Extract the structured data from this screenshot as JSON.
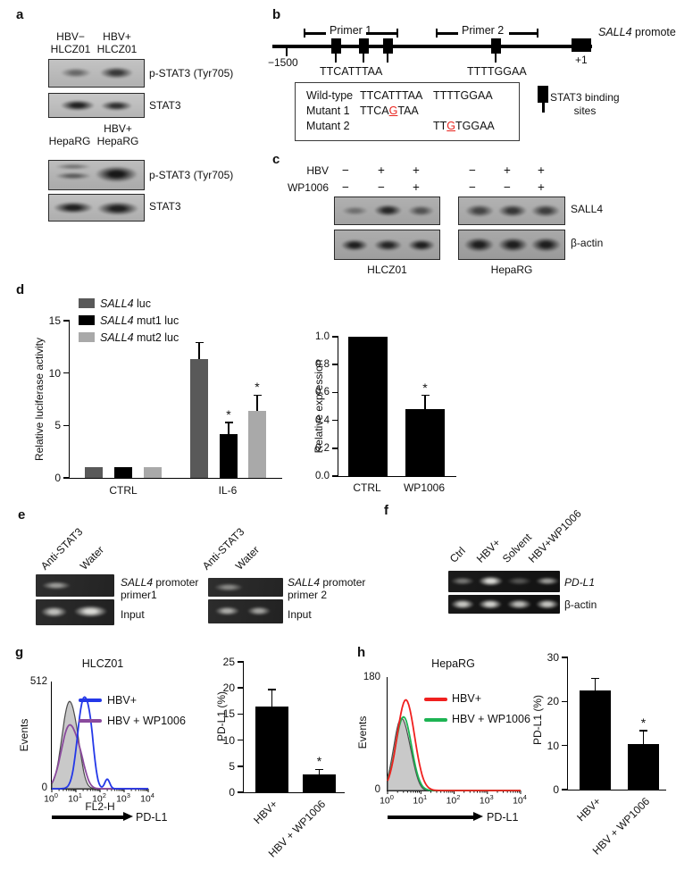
{
  "panel_a": {
    "label": "a",
    "group1": {
      "col1": [
        "HBV−",
        "HLCZ01"
      ],
      "col2": [
        "HBV+",
        "HLCZ01"
      ],
      "blot1_label": "p-STAT3 (Tyr705)",
      "blot2_label": "STAT3"
    },
    "group2": {
      "col1": [
        "HepaRG"
      ],
      "col2": [
        "HBV+",
        "HepaRG"
      ],
      "blot1_label": "p-STAT3 (Tyr705)",
      "blot2_label": "STAT3"
    }
  },
  "panel_b": {
    "label": "b",
    "primer1_label": "Primer 1",
    "primer2_label": "Primer 2",
    "promoter_gene": "SALL4",
    "promoter_word": " promoter",
    "pos_left": "−1500",
    "pos_right": "+1",
    "site1_seq": "TTCATTTAA",
    "site2_seq": "TTTTGGAA",
    "mutation_table": {
      "rows": [
        {
          "name": "Wild-type",
          "s1a": "TTCATTTAA",
          "s1red": "",
          "s1b": "",
          "s2a": "TTTTGGAA",
          "s2red": "",
          "s2b": ""
        },
        {
          "name": "Mutant 1",
          "s1a": "TTCA",
          "s1red": "G",
          "s1b": "TAA",
          "s2a": "",
          "s2red": "",
          "s2b": ""
        },
        {
          "name": "Mutant 2",
          "s1a": "",
          "s1red": "",
          "s1b": "",
          "s2a": "TT",
          "s2red": "G",
          "s2b": "TGGAA"
        }
      ]
    },
    "legend": [
      "STAT3 binding",
      "sites"
    ]
  },
  "panel_c": {
    "label": "c",
    "row1_label": "HBV",
    "row2_label": "WP1006",
    "hbv_signs": [
      "−",
      "+",
      "+",
      "−",
      "+",
      "+"
    ],
    "wp_signs": [
      "−",
      "−",
      "+",
      "−",
      "−",
      "+"
    ],
    "blot1_label": "SALL4",
    "blot2_label": "β-actin",
    "cell_line_left": "HLCZ01",
    "cell_line_right": "HepaRG"
  },
  "panel_d": {
    "label": "d"
  },
  "panel_e": {
    "label": "e",
    "group1": {
      "lane1": "Anti-STAT3",
      "lane2": "Water",
      "target_gene": "SALL4",
      "target_word": " promoter",
      "target_line2": "primer1",
      "input_label": "Input"
    },
    "group2": {
      "lane1": "Anti-STAT3",
      "lane2": "Water",
      "target_gene": "SALL4",
      "target_word": " promoter",
      "target_line2": "primer 2",
      "input_label": "Input"
    }
  },
  "panel_f": {
    "label": "f",
    "lanes": [
      "Ctrl",
      "HBV+",
      "Solvent",
      "HBV+WP1006"
    ],
    "row1_label": "PD-L1",
    "row2_label": "β-actin"
  },
  "panel_g": {
    "label": "g",
    "xaxis_name": "FL2-H",
    "arrow_label": "PD-L1"
  },
  "panel_h": {
    "label": "h",
    "arrow_label": "PD-L1"
  },
  "chart_data": {
    "d_left": {
      "type": "bar",
      "ylabel": "Relative luciferase activity",
      "ylim": [
        0,
        15
      ],
      "yticks": [
        "0",
        "5",
        "10",
        "15"
      ],
      "categories": [
        "CTRL",
        "IL-6"
      ],
      "series": [
        {
          "name_gene": "SALL4",
          "name_rest": " luc",
          "color": "#595959",
          "values": [
            1,
            11.3
          ],
          "errors": [
            0,
            1.6
          ],
          "sig": [
            "",
            ""
          ]
        },
        {
          "name_gene": "SALL4",
          "name_rest": " mut1 luc",
          "color": "#000000",
          "values": [
            1,
            4.2
          ],
          "errors": [
            0,
            1.1
          ],
          "sig": [
            "",
            "*"
          ]
        },
        {
          "name_gene": "SALL4",
          "name_rest": " mut2 luc",
          "color": "#a9a9a9",
          "values": [
            1,
            6.4
          ],
          "errors": [
            0,
            1.5
          ],
          "sig": [
            "",
            "*"
          ]
        }
      ]
    },
    "d_right": {
      "type": "bar",
      "ylabel": "Relative expression",
      "ylim": [
        0,
        1
      ],
      "yticks": [
        "0.0",
        "0.2",
        "0.4",
        "0.6",
        "0.8",
        "1.0"
      ],
      "categories": [
        "CTRL",
        "WP1006"
      ],
      "color": "#000000",
      "values": [
        1.0,
        0.48
      ],
      "errors": [
        0,
        0.1
      ],
      "sig": [
        "",
        "*"
      ]
    },
    "g_bar": {
      "type": "bar",
      "ylabel": "PD-L1 (%)",
      "ylim": [
        0,
        25
      ],
      "yticks": [
        "0",
        "5",
        "10",
        "15",
        "20",
        "25"
      ],
      "categories": [
        "HBV+",
        "HBV + WP1006"
      ],
      "color": "#000000",
      "values": [
        16.5,
        3.4
      ],
      "errors": [
        3.2,
        1.0
      ],
      "sig": [
        "",
        "*"
      ]
    },
    "h_bar": {
      "type": "bar",
      "ylabel": "PD-L1 (%)",
      "ylim": [
        0,
        30
      ],
      "yticks": [
        "0",
        "10",
        "20",
        "30"
      ],
      "categories": [
        "HBV+",
        "HBV + WP1006"
      ],
      "color": "#000000",
      "values": [
        22.5,
        10.4
      ],
      "errors": [
        2.7,
        3.0
      ],
      "sig": [
        "",
        "*"
      ]
    },
    "g_hist": {
      "type": "flow-histogram",
      "title": "HLCZ01",
      "ylabel": "Events",
      "ymax_label": "512",
      "ymin_label": "0",
      "xtick_exps": [
        "0",
        "1",
        "2",
        "3",
        "4"
      ],
      "series": [
        {
          "id": "control-filled",
          "fill": true,
          "fill_color": "#c9c9c9",
          "color": "#4a4a4a",
          "components": [
            {
              "mu": 0.72,
              "sigma": 0.3,
              "h": 0.8
            },
            {
              "mu": 1.1,
              "sigma": 0.18,
              "h": 0.12
            }
          ]
        },
        {
          "id": "hbv-wp1006",
          "color": "#8a4a9d",
          "components": [
            {
              "mu": 0.72,
              "sigma": 0.33,
              "h": 0.58
            },
            {
              "mu": 1.2,
              "sigma": 0.22,
              "h": 0.15
            }
          ]
        },
        {
          "id": "hbv",
          "color": "#2438e8",
          "components": [
            {
              "mu": 1.3,
              "sigma": 0.24,
              "h": 0.8
            },
            {
              "mu": 1.62,
              "sigma": 0.16,
              "h": 0.3
            },
            {
              "mu": 2.3,
              "sigma": 0.1,
              "h": 0.09
            }
          ]
        }
      ],
      "legend": [
        {
          "label": "HBV+",
          "color": "#2438e8"
        },
        {
          "label": "HBV + WP1006",
          "color": "#8a4a9d"
        }
      ]
    },
    "h_hist": {
      "type": "flow-histogram",
      "title": "HepaRG",
      "ylabel": "Events",
      "ymax_label": "180",
      "ymin_label": "0",
      "xtick_exps": [
        "0",
        "1",
        "2",
        "3",
        "4"
      ],
      "series": [
        {
          "id": "control-filled",
          "fill": true,
          "fill_color": "#c9c9c9",
          "color": "#4a4a4a",
          "components": [
            {
              "mu": 0.4,
              "sigma": 0.22,
              "h": 0.62
            },
            {
              "mu": 0.72,
              "sigma": 0.16,
              "h": 0.12
            }
          ]
        },
        {
          "id": "hbv-wp1006",
          "color": "#1db353",
          "components": [
            {
              "mu": 0.48,
              "sigma": 0.24,
              "h": 0.65
            }
          ]
        },
        {
          "id": "hbv",
          "color": "#f0201f",
          "components": [
            {
              "mu": 0.55,
              "sigma": 0.26,
              "h": 0.8
            }
          ]
        }
      ],
      "legend": [
        {
          "label": "HBV+",
          "color": "#f0201f"
        },
        {
          "label": "HBV + WP1006",
          "color": "#1db353"
        }
      ]
    }
  }
}
